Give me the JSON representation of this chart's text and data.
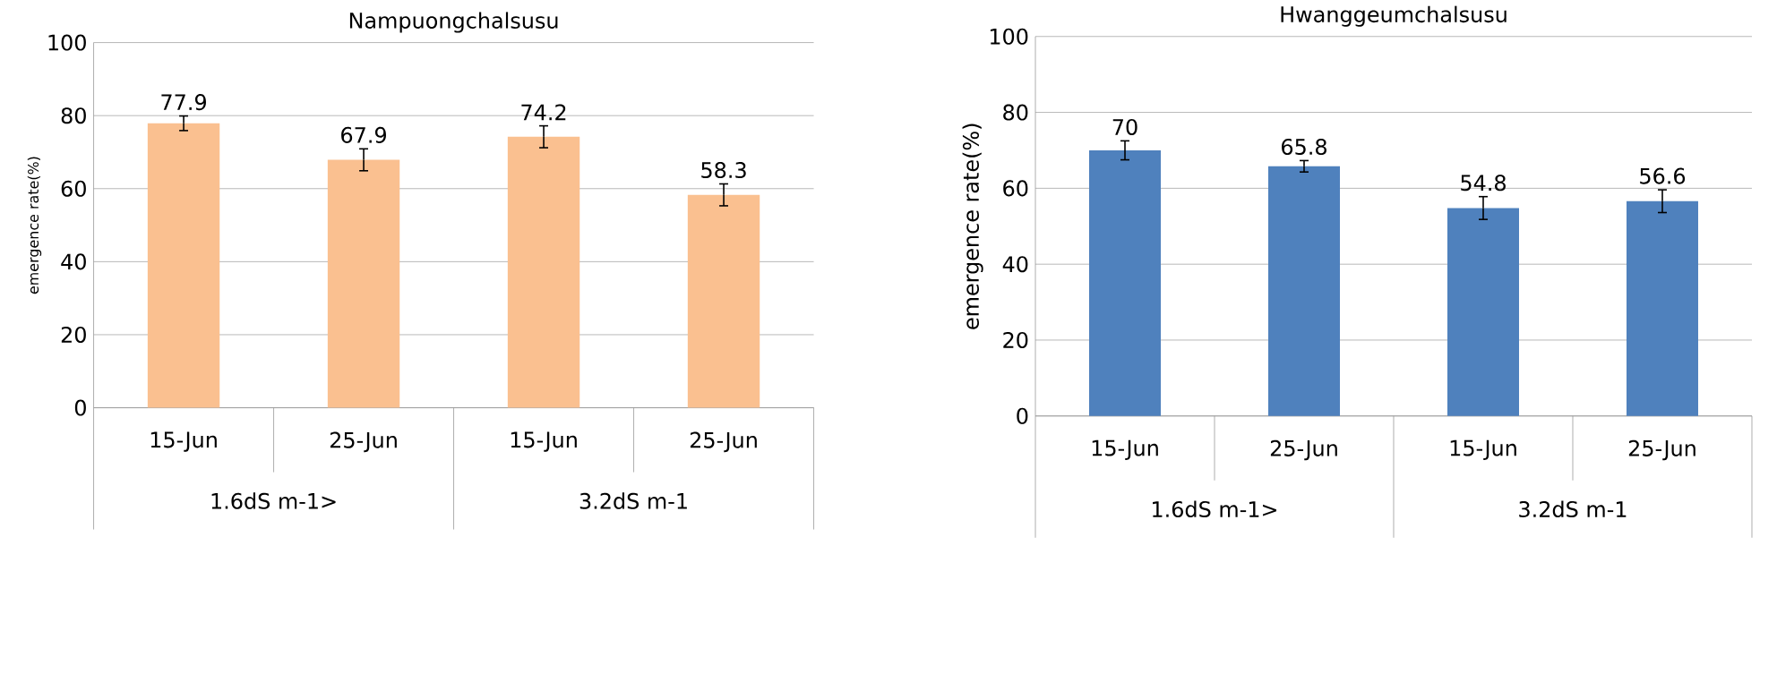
{
  "chart_data": [
    {
      "type": "bar",
      "title": "Nampuongchalsusu",
      "ylabel": "emergence rate(%)",
      "categories": [
        "15-Jun",
        "25-Jun",
        "15-Jun",
        "25-Jun"
      ],
      "values": [
        77.9,
        67.9,
        74.2,
        58.3
      ],
      "errors": [
        2,
        3,
        3,
        3
      ],
      "value_labels": [
        "77.9",
        "67.9",
        "74.2",
        "58.3"
      ],
      "color": "#fac090",
      "ylim": [
        0,
        100
      ],
      "yticks": [
        0,
        20,
        40,
        60,
        80,
        100
      ],
      "grid": "y",
      "annotations": [
        "1.6dS m-1>",
        "3.2dS m-1"
      ]
    },
    {
      "type": "bar",
      "title": "Hwanggeumchalsusu",
      "ylabel": "emergence rate(%)",
      "categories": [
        "15-Jun",
        "25-Jun",
        "15-Jun",
        "25-Jun"
      ],
      "values": [
        70,
        65.8,
        54.8,
        56.6
      ],
      "errors": [
        2.5,
        1.5,
        3,
        3
      ],
      "value_labels": [
        "70",
        "65.8",
        "54.8",
        "56.6"
      ],
      "color": "#4f81bd",
      "ylim": [
        0,
        100
      ],
      "yticks": [
        0,
        20,
        40,
        60,
        80,
        100
      ],
      "grid": "y",
      "annotations": [
        "1.6dS m-1>",
        "3.2dS m-1"
      ]
    }
  ]
}
